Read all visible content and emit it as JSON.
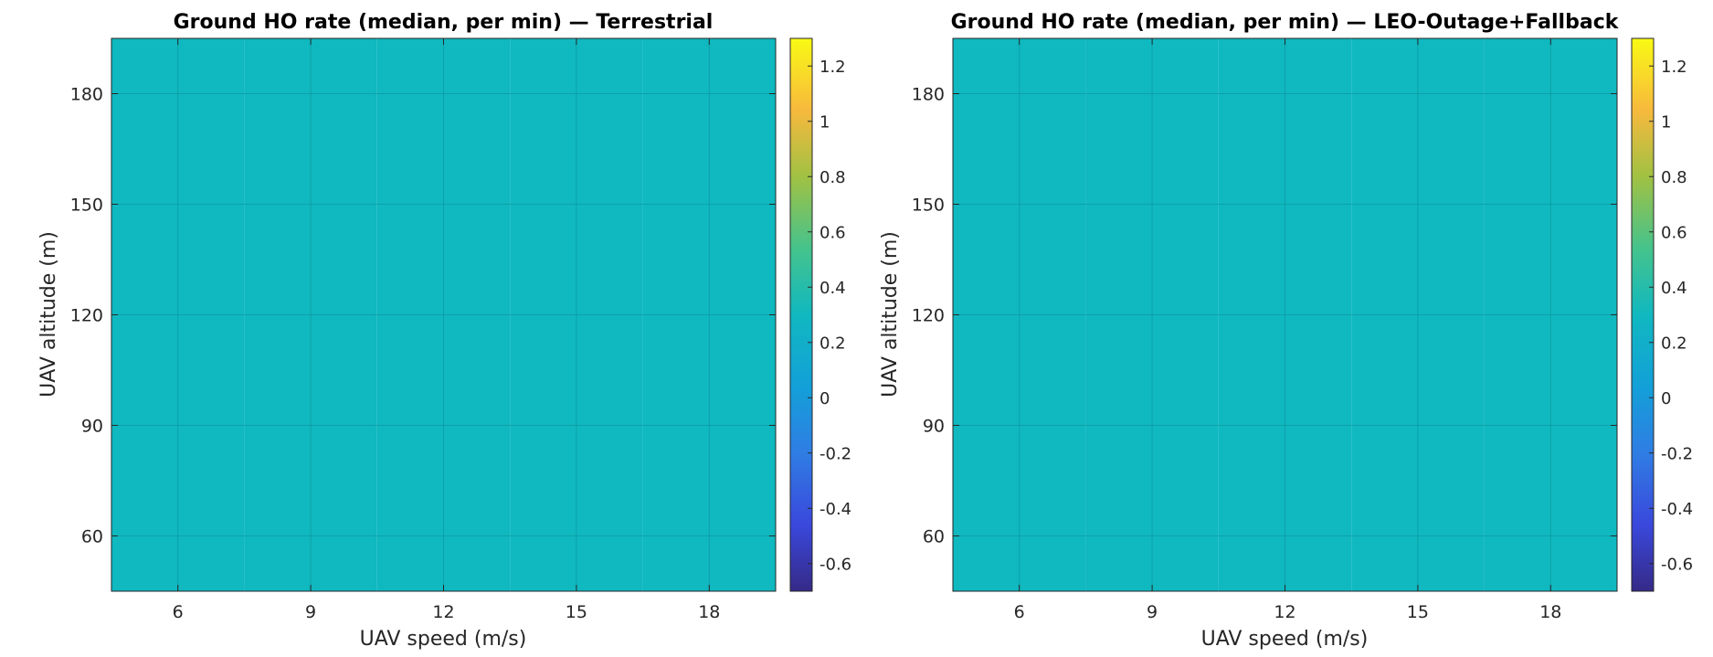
{
  "chart_data": [
    {
      "type": "heatmap",
      "title": "Ground HO rate (median, per min) — Terrestrial",
      "xlabel": "UAV speed (m/s)",
      "ylabel": "UAV altitude (m)",
      "xlim": [
        4.5,
        19.5
      ],
      "ylim": [
        45,
        195
      ],
      "x_ticks": [
        6,
        9,
        12,
        15,
        18
      ],
      "y_ticks": [
        60,
        90,
        120,
        150,
        180
      ],
      "grid": true,
      "x": [
        6,
        9,
        12,
        15,
        18
      ],
      "y": [
        60,
        90,
        120,
        150,
        180
      ],
      "z": [
        [
          0.3,
          0.3,
          0.3,
          0.3,
          0.3
        ],
        [
          0.3,
          0.3,
          0.3,
          0.3,
          0.3
        ],
        [
          0.3,
          0.3,
          0.3,
          0.3,
          0.3
        ],
        [
          0.3,
          0.3,
          0.3,
          0.3,
          0.3
        ],
        [
          0.3,
          0.3,
          0.3,
          0.3,
          0.3
        ]
      ],
      "colorbar": {
        "colormap": "parula",
        "clim": [
          -0.7,
          1.3
        ],
        "ticks": [
          -0.6,
          -0.4,
          -0.2,
          0,
          0.2,
          0.4,
          0.6,
          0.8,
          1,
          1.2
        ]
      }
    },
    {
      "type": "heatmap",
      "title": "Ground HO rate (median, per min) — LEO-Outage+Fallback",
      "xlabel": "UAV speed (m/s)",
      "ylabel": "UAV altitude (m)",
      "xlim": [
        4.5,
        19.5
      ],
      "ylim": [
        45,
        195
      ],
      "x_ticks": [
        6,
        9,
        12,
        15,
        18
      ],
      "y_ticks": [
        60,
        90,
        120,
        150,
        180
      ],
      "grid": true,
      "x": [
        6,
        9,
        12,
        15,
        18
      ],
      "y": [
        60,
        90,
        120,
        150,
        180
      ],
      "z": [
        [
          0.3,
          0.3,
          0.3,
          0.3,
          0.3
        ],
        [
          0.3,
          0.3,
          0.3,
          0.3,
          0.3
        ],
        [
          0.3,
          0.3,
          0.3,
          0.3,
          0.3
        ],
        [
          0.3,
          0.3,
          0.3,
          0.3,
          0.3
        ],
        [
          0.3,
          0.3,
          0.3,
          0.3,
          0.3
        ]
      ],
      "colorbar": {
        "colormap": "parula",
        "clim": [
          -0.7,
          1.3
        ],
        "ticks": [
          -0.6,
          -0.4,
          -0.2,
          0,
          0.2,
          0.4,
          0.6,
          0.8,
          1,
          1.2
        ]
      }
    }
  ]
}
